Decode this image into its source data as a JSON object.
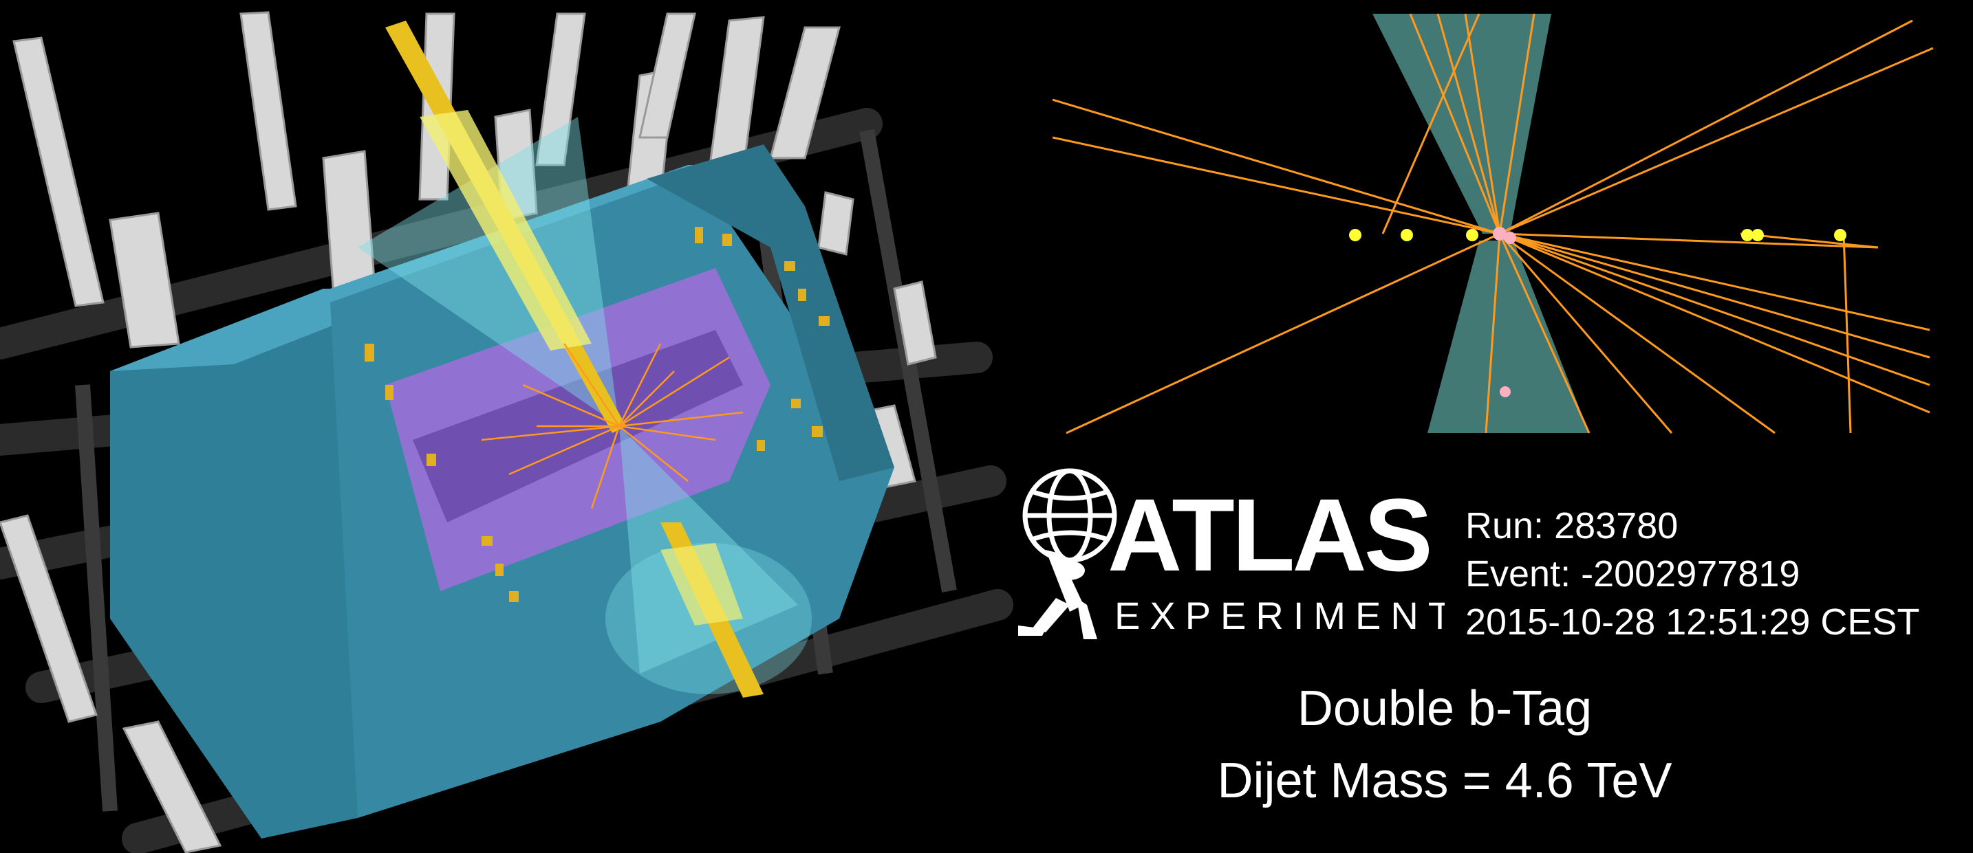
{
  "logo": {
    "name": "ATLAS",
    "sub": "EXPERIMENT"
  },
  "event": {
    "run": "Run: 283780",
    "event": "Event: -2002977819",
    "datetime": "2015-10-28 12:51:29 CEST"
  },
  "caption": {
    "line1": "Double b-Tag",
    "line2": "Dijet Mass = 4.6 TeV"
  },
  "colors": {
    "background": "#000000",
    "calorimeter": "#3f95b0",
    "inner_detector": "#9b6fd6",
    "tracks": "#ff9a1f",
    "jet_cone": "#7fe0e8",
    "energy_tower": "#e0b020",
    "vertex": "#ffff33",
    "primary_vertex": "#ffb0c0"
  }
}
